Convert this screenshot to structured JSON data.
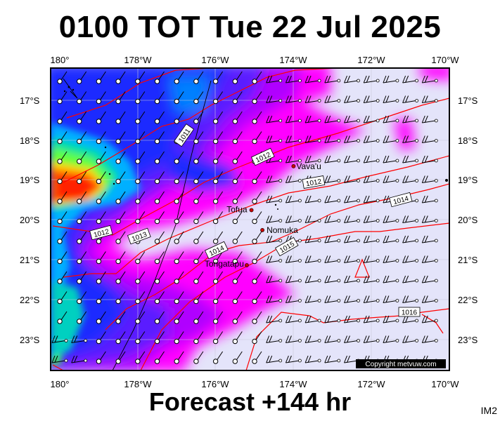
{
  "title": "0100 TOT Tue 22 Jul 2025",
  "footer": "Forecast +144 hr",
  "product_code": "IM2",
  "copyright": "Copyright metvuw.com",
  "colors": {
    "background_shade": "#e4e4fa",
    "pressure_isobar": "#ff0000",
    "map_frame": "#000000",
    "place_marker": "#cc0000"
  },
  "map": {
    "lon_labels": [
      "180°",
      "178°W",
      "176°W",
      "174°W",
      "172°W",
      "170°W"
    ],
    "lat_labels": [
      "17°S",
      "18°S",
      "19°S",
      "20°S",
      "21°S",
      "22°S",
      "23°S"
    ]
  },
  "places": [
    {
      "name": "Vava'u",
      "lon": -174.0,
      "lat": -18.65
    },
    {
      "name": "Tofua",
      "lon": -175.08,
      "lat": -19.75
    },
    {
      "name": "Nomuka",
      "lon": -174.8,
      "lat": -20.25
    },
    {
      "name": "Tongatapu",
      "lon": -175.2,
      "lat": -21.13
    }
  ],
  "isobar_labels": [
    "1011",
    "1012",
    "1012",
    "1012",
    "1013",
    "1014",
    "1014",
    "1015",
    "1016"
  ]
}
